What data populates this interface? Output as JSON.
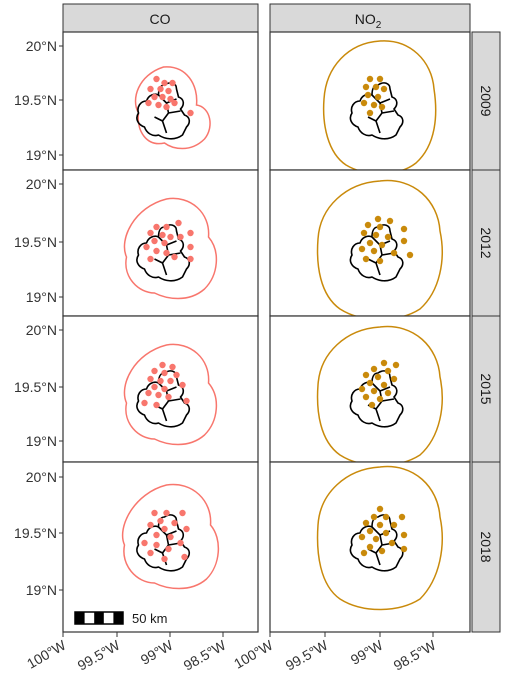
{
  "columns": [
    {
      "label": "CO",
      "sub": "",
      "color": "#F8766D"
    },
    {
      "label": "NO",
      "sub": "2",
      "color": "#C98A0B"
    }
  ],
  "rows": [
    "2009",
    "2012",
    "2015",
    "2018"
  ],
  "y_axis_labels": [
    "20°N",
    "19.5°N",
    "19°N"
  ],
  "x_axis_labels": [
    "100°W",
    "99.5°W",
    "99°W",
    "98.5°W"
  ],
  "scale_bar": {
    "label": "50 km"
  },
  "colors": {
    "strip_bg": "#D9D9D9",
    "boundary": "#000000",
    "panel_border": "#333333"
  }
}
